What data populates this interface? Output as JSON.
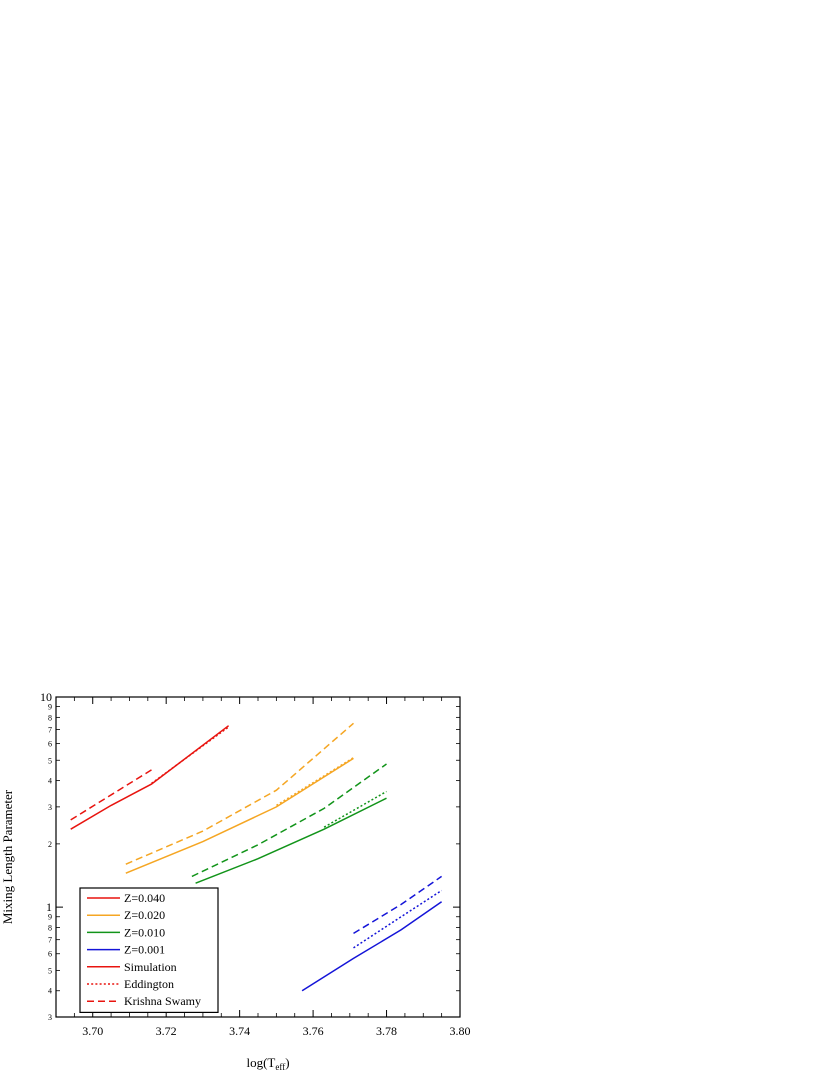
{
  "chart_data": {
    "type": "line",
    "xlabel": "log(T",
    "xlabel_sub": "eff",
    "xlabel_close": ")",
    "ylabel": "Mixing Length Parameter",
    "xlim": [
      3.69,
      3.8
    ],
    "ylim": [
      0.3,
      10
    ],
    "yscale": "log",
    "x_ticks": [
      "3.70",
      "3.72",
      "3.74",
      "3.76",
      "3.78",
      "3.80"
    ],
    "y_major_ticks": [
      "1",
      "10"
    ],
    "y_minor_ticks": [
      {
        "value": 0.3,
        "label": "3"
      },
      {
        "value": 0.4,
        "label": "4"
      },
      {
        "value": 0.5,
        "label": "5"
      },
      {
        "value": 0.6,
        "label": "6"
      },
      {
        "value": 0.7,
        "label": "7"
      },
      {
        "value": 0.8,
        "label": "8"
      },
      {
        "value": 0.9,
        "label": "9"
      },
      {
        "value": 2,
        "label": "2"
      },
      {
        "value": 3,
        "label": "3"
      },
      {
        "value": 4,
        "label": "4"
      },
      {
        "value": 5,
        "label": "5"
      },
      {
        "value": 6,
        "label": "6"
      },
      {
        "value": 7,
        "label": "7"
      },
      {
        "value": 8,
        "label": "8"
      },
      {
        "value": 9,
        "label": "9"
      }
    ],
    "grid": false,
    "legend_position": "bottom-left",
    "legend": [
      {
        "label": "Z=0.040",
        "color": "#e8140f",
        "style": "solid"
      },
      {
        "label": "Z=0.020",
        "color": "#f5a623",
        "style": "solid"
      },
      {
        "label": "Z=0.010",
        "color": "#12941a",
        "style": "solid"
      },
      {
        "label": "Z=0.001",
        "color": "#1414d8",
        "style": "solid"
      },
      {
        "label": "Simulation",
        "color": "#e8140f",
        "style": "solid"
      },
      {
        "label": "Eddington",
        "color": "#e8140f",
        "style": "dotted"
      },
      {
        "label": "Krishna Swamy",
        "color": "#e8140f",
        "style": "dashed"
      }
    ],
    "series": [
      {
        "z": "Z=0.040",
        "method": "Simulation",
        "color": "#e8140f",
        "style": "solid",
        "x": [
          3.694,
          3.705,
          3.716,
          3.737
        ],
        "y": [
          2.35,
          3.05,
          3.85,
          7.3
        ]
      },
      {
        "z": "Z=0.040",
        "method": "Eddington",
        "color": "#e8140f",
        "style": "dotted",
        "x": [
          3.716,
          3.737
        ],
        "y": [
          3.88,
          7.2
        ]
      },
      {
        "z": "Z=0.040",
        "method": "Krishna Swamy",
        "color": "#e8140f",
        "style": "dashed",
        "x": [
          3.694,
          3.716
        ],
        "y": [
          2.6,
          4.5
        ]
      },
      {
        "z": "Z=0.020",
        "method": "Simulation",
        "color": "#f5a623",
        "style": "solid",
        "x": [
          3.709,
          3.73,
          3.75,
          3.771
        ],
        "y": [
          1.45,
          2.05,
          3.0,
          5.1
        ]
      },
      {
        "z": "Z=0.020",
        "method": "Eddington",
        "color": "#f5a623",
        "style": "dotted",
        "x": [
          3.75,
          3.771
        ],
        "y": [
          3.05,
          5.15
        ]
      },
      {
        "z": "Z=0.020",
        "method": "Krishna Swamy",
        "color": "#f5a623",
        "style": "dashed",
        "x": [
          3.709,
          3.73,
          3.75,
          3.771
        ],
        "y": [
          1.6,
          2.3,
          3.6,
          7.5
        ]
      },
      {
        "z": "Z=0.010",
        "method": "Simulation",
        "color": "#12941a",
        "style": "solid",
        "x": [
          3.728,
          3.745,
          3.763,
          3.78
        ],
        "y": [
          1.3,
          1.7,
          2.35,
          3.3
        ]
      },
      {
        "z": "Z=0.010",
        "method": "Eddington",
        "color": "#12941a",
        "style": "dotted",
        "x": [
          3.763,
          3.78
        ],
        "y": [
          2.4,
          3.55
        ]
      },
      {
        "z": "Z=0.010",
        "method": "Krishna Swamy",
        "color": "#12941a",
        "style": "dashed",
        "x": [
          3.727,
          3.745,
          3.763,
          3.78
        ],
        "y": [
          1.4,
          1.98,
          2.95,
          4.8
        ]
      },
      {
        "z": "Z=0.001",
        "method": "Simulation",
        "color": "#1414d8",
        "style": "solid",
        "x": [
          3.757,
          3.771,
          3.784,
          3.795
        ],
        "y": [
          0.4,
          0.57,
          0.78,
          1.06
        ]
      },
      {
        "z": "Z=0.001",
        "method": "Eddington",
        "color": "#1414d8",
        "style": "dotted",
        "x": [
          3.771,
          3.784,
          3.795
        ],
        "y": [
          0.64,
          0.9,
          1.2
        ]
      },
      {
        "z": "Z=0.001",
        "method": "Krishna Swamy",
        "color": "#1414d8",
        "style": "dashed",
        "x": [
          3.771,
          3.784,
          3.795
        ],
        "y": [
          0.75,
          1.03,
          1.4
        ]
      }
    ]
  }
}
